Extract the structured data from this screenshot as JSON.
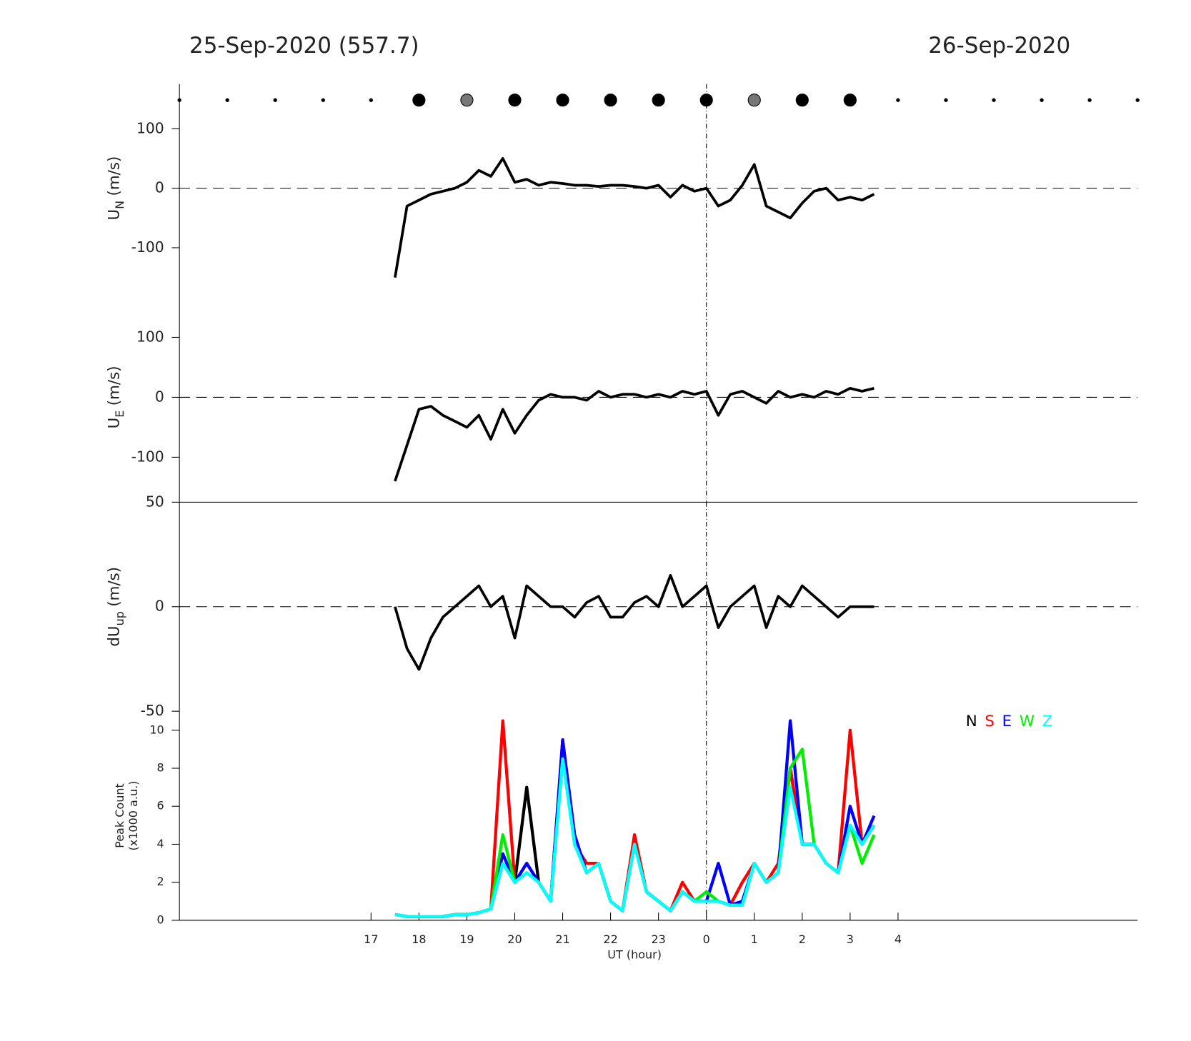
{
  "chart_data": [
    {
      "type": "markers",
      "title": "25-Sep-2020 (557.7)",
      "subtitle": "26-Sep-2020",
      "x": [
        13,
        14,
        15,
        16,
        17,
        18,
        19,
        20,
        21,
        22,
        23,
        24,
        25,
        26,
        27,
        28,
        29,
        30,
        31,
        32,
        33
      ],
      "sizes": [
        2,
        2,
        2,
        2,
        2,
        8,
        8,
        8,
        8,
        8,
        8,
        8,
        8,
        8,
        8,
        2,
        2,
        2,
        2,
        2,
        2
      ],
      "colors": [
        "#000",
        "#000",
        "#000",
        "#000",
        "#000",
        "#000",
        "#777",
        "#000",
        "#000",
        "#000",
        "#000",
        "#000",
        "#777",
        "#000",
        "#000",
        "#000",
        "#000",
        "#000",
        "#000",
        "#000",
        "#000"
      ],
      "xlim": [
        13,
        33
      ]
    },
    {
      "type": "line",
      "ylabel": {
        "main": "U",
        "sub": "N",
        "unit": "(m/s)"
      },
      "x": [
        17.5,
        17.75,
        18,
        18.25,
        18.5,
        18.75,
        19,
        19.25,
        19.5,
        19.75,
        20,
        20.25,
        20.5,
        20.75,
        21,
        21.25,
        21.5,
        21.75,
        22,
        22.25,
        22.5,
        22.75,
        23,
        23.25,
        23.5,
        23.75,
        24,
        24.25,
        24.5,
        24.75,
        25,
        25.25,
        25.5,
        25.75,
        26,
        26.25,
        26.5,
        26.75,
        27,
        27.25,
        27.5
      ],
      "series": [
        {
          "color": "#000",
          "values": [
            -150,
            -30,
            -20,
            -10,
            -5,
            0,
            10,
            30,
            20,
            50,
            10,
            15,
            5,
            10,
            8,
            5,
            5,
            3,
            5,
            5,
            3,
            0,
            5,
            -15,
            5,
            -5,
            0,
            -30,
            -20,
            5,
            40,
            -30,
            -40,
            -50,
            -25,
            -5,
            0,
            -20,
            -15,
            -20,
            -10
          ]
        }
      ],
      "xlim": [
        13,
        33
      ],
      "ylim": [
        -175,
        175
      ],
      "yticks": [
        -100,
        0,
        100
      ],
      "hline": 0,
      "vline": 24
    },
    {
      "type": "line",
      "ylabel": {
        "main": "U",
        "sub": "E",
        "unit": "(m/s)"
      },
      "x": [
        17.5,
        17.75,
        18,
        18.25,
        18.5,
        18.75,
        19,
        19.25,
        19.5,
        19.75,
        20,
        20.25,
        20.5,
        20.75,
        21,
        21.25,
        21.5,
        21.75,
        22,
        22.25,
        22.5,
        22.75,
        23,
        23.25,
        23.5,
        23.75,
        24,
        24.25,
        24.5,
        24.75,
        25,
        25.25,
        25.5,
        25.75,
        26,
        26.25,
        26.5,
        26.75,
        27,
        27.25,
        27.5
      ],
      "series": [
        {
          "color": "#000",
          "values": [
            -140,
            -80,
            -20,
            -15,
            -30,
            -40,
            -50,
            -30,
            -70,
            -20,
            -60,
            -30,
            -5,
            5,
            0,
            0,
            -5,
            10,
            0,
            5,
            5,
            0,
            5,
            0,
            10,
            5,
            10,
            -30,
            5,
            10,
            0,
            -10,
            10,
            0,
            5,
            0,
            10,
            5,
            15,
            10,
            15
          ]
        }
      ],
      "xlim": [
        13,
        33
      ],
      "ylim": [
        -175,
        175
      ],
      "yticks": [
        -100,
        0,
        100
      ],
      "hline": 0,
      "vline": 24
    },
    {
      "type": "line",
      "ylabel": {
        "main": "dU",
        "sub": "up",
        "unit": "(m/s)"
      },
      "x": [
        17.5,
        17.75,
        18,
        18.25,
        18.5,
        18.75,
        19,
        19.25,
        19.5,
        19.75,
        20,
        20.25,
        20.5,
        20.75,
        21,
        21.25,
        21.5,
        21.75,
        22,
        22.25,
        22.5,
        22.75,
        23,
        23.25,
        23.5,
        23.75,
        24,
        24.25,
        24.5,
        24.75,
        25,
        25.25,
        25.5,
        25.75,
        26,
        26.25,
        26.5,
        26.75,
        27,
        27.25,
        27.5
      ],
      "series": [
        {
          "color": "#000",
          "values": [
            0,
            -20,
            -30,
            -15,
            -5,
            0,
            5,
            10,
            0,
            5,
            -15,
            10,
            5,
            0,
            0,
            -5,
            2,
            5,
            -5,
            -5,
            2,
            5,
            0,
            15,
            0,
            5,
            10,
            -10,
            0,
            5,
            10,
            -10,
            5,
            0,
            10,
            5,
            0,
            -5,
            0,
            0,
            0
          ]
        }
      ],
      "xlim": [
        13,
        33
      ],
      "ylim": [
        -50,
        50
      ],
      "yticks": [
        -50,
        0,
        50
      ],
      "hline": 0,
      "vline": 24
    },
    {
      "type": "line",
      "ylabel": {
        "main": "Peak Count",
        "unit": "(x1000 a.u.)"
      },
      "xlabel": "UT (hour)",
      "x": [
        17.5,
        17.75,
        18,
        18.25,
        18.5,
        18.75,
        19,
        19.25,
        19.5,
        19.75,
        20,
        20.25,
        20.5,
        20.75,
        21,
        21.25,
        21.5,
        21.75,
        22,
        22.25,
        22.5,
        22.75,
        23,
        23.25,
        23.5,
        23.75,
        24,
        24.25,
        24.5,
        24.75,
        25,
        25.25,
        25.5,
        25.75,
        26,
        26.25,
        26.5,
        26.75,
        27,
        27.25,
        27.5
      ],
      "series": [
        {
          "name": "N",
          "color": "#000000",
          "values": [
            0.3,
            0.2,
            0.2,
            0.2,
            0.2,
            0.3,
            0.3,
            0.4,
            0.6,
            3,
            2,
            7,
            2,
            1,
            9,
            4,
            2.5,
            3,
            1,
            0.5,
            4,
            1.5,
            1,
            0.5,
            1.5,
            1,
            1,
            1,
            0.8,
            0.8,
            3,
            2,
            2.5,
            8,
            4,
            4,
            3,
            2.5,
            5,
            4,
            5
          ]
        },
        {
          "name": "S",
          "color": "#ff0000",
          "values": [
            0.3,
            0.2,
            0.2,
            0.2,
            0.2,
            0.3,
            0.3,
            0.4,
            0.6,
            10.5,
            2,
            3,
            2,
            1,
            9.5,
            4,
            3,
            3,
            1,
            0.5,
            4.5,
            1.5,
            1,
            0.5,
            2,
            1,
            1,
            1,
            0.8,
            2,
            3,
            2,
            3,
            8,
            4,
            4,
            3,
            2.5,
            10,
            4,
            5
          ]
        },
        {
          "name": "E",
          "color": "#0000ff",
          "values": [
            0.3,
            0.2,
            0.2,
            0.2,
            0.2,
            0.3,
            0.3,
            0.4,
            0.6,
            3.5,
            2,
            3,
            2,
            1,
            9.5,
            4.5,
            2.5,
            3,
            1,
            0.5,
            4,
            1.5,
            1,
            0.5,
            1.5,
            1,
            1,
            3,
            0.8,
            1,
            3,
            2,
            2.5,
            10.5,
            4,
            4,
            3,
            2.5,
            6,
            4,
            5.5
          ]
        },
        {
          "name": "W",
          "color": "#00ee00",
          "values": [
            0.3,
            0.2,
            0.2,
            0.2,
            0.2,
            0.3,
            0.3,
            0.4,
            0.6,
            4.5,
            2,
            2.5,
            2,
            1,
            8.5,
            4,
            2.5,
            3,
            1,
            0.5,
            4,
            1.5,
            1,
            0.5,
            1.5,
            1,
            1.5,
            1,
            0.8,
            0.8,
            3,
            2,
            2.5,
            8,
            9,
            4,
            3,
            2.5,
            5,
            3,
            4.5
          ]
        },
        {
          "name": "Z",
          "color": "#00ffff",
          "values": [
            0.3,
            0.2,
            0.2,
            0.2,
            0.2,
            0.3,
            0.3,
            0.4,
            0.6,
            3,
            2,
            2.5,
            2,
            1,
            8.5,
            4,
            2.5,
            3,
            1,
            0.5,
            4,
            1.5,
            1,
            0.5,
            1.5,
            1,
            1,
            1,
            0.8,
            0.8,
            3,
            2,
            2.5,
            7,
            4,
            4,
            3,
            2.5,
            5,
            4,
            5
          ]
        }
      ],
      "xlim": [
        13,
        33
      ],
      "ylim": [
        0,
        11
      ],
      "yticks": [
        0,
        2,
        4,
        6,
        8,
        10
      ],
      "vline": 24,
      "xticks": [
        17,
        18,
        19,
        20,
        21,
        22,
        23,
        {
          "value": 24,
          "label": "0"
        },
        {
          "value": 25,
          "label": "1"
        },
        {
          "value": 26,
          "label": "2"
        },
        {
          "value": 27,
          "label": "3"
        },
        {
          "value": 28,
          "label": "4"
        }
      ]
    }
  ]
}
